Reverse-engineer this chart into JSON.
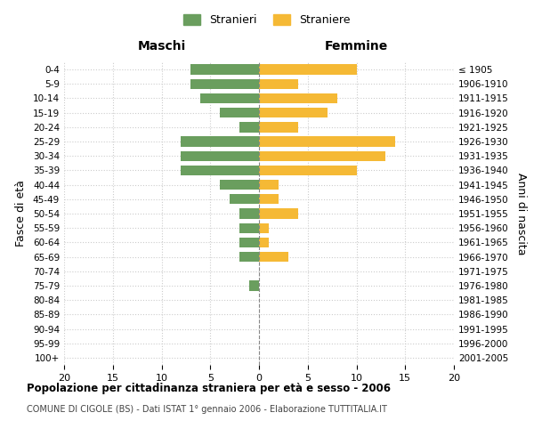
{
  "age_groups": [
    "0-4",
    "5-9",
    "10-14",
    "15-19",
    "20-24",
    "25-29",
    "30-34",
    "35-39",
    "40-44",
    "45-49",
    "50-54",
    "55-59",
    "60-64",
    "65-69",
    "70-74",
    "75-79",
    "80-84",
    "85-89",
    "90-94",
    "95-99",
    "100+"
  ],
  "birth_years": [
    "2001-2005",
    "1996-2000",
    "1991-1995",
    "1986-1990",
    "1981-1985",
    "1976-1980",
    "1971-1975",
    "1966-1970",
    "1961-1965",
    "1956-1960",
    "1951-1955",
    "1946-1950",
    "1941-1945",
    "1936-1940",
    "1931-1935",
    "1926-1930",
    "1921-1925",
    "1916-1920",
    "1911-1915",
    "1906-1910",
    "≤ 1905"
  ],
  "males": [
    7,
    7,
    6,
    4,
    2,
    8,
    8,
    8,
    4,
    3,
    2,
    2,
    2,
    2,
    0,
    1,
    0,
    0,
    0,
    0,
    0
  ],
  "females": [
    10,
    4,
    8,
    7,
    4,
    14,
    13,
    10,
    2,
    2,
    4,
    1,
    1,
    3,
    0,
    0,
    0,
    0,
    0,
    0,
    0
  ],
  "male_color": "#6a9e5e",
  "female_color": "#f5b935",
  "background_color": "#ffffff",
  "grid_color": "#cccccc",
  "xlim": 20,
  "title": "Popolazione per cittadinanza straniera per età e sesso - 2006",
  "subtitle": "COMUNE DI CIGOLE (BS) - Dati ISTAT 1° gennaio 2006 - Elaborazione TUTTITALIA.IT",
  "left_label": "Maschi",
  "right_label": "Femmine",
  "left_axis_label": "Fasce di età",
  "right_axis_label": "Anni di nascita",
  "legend_male": "Stranieri",
  "legend_female": "Straniere"
}
